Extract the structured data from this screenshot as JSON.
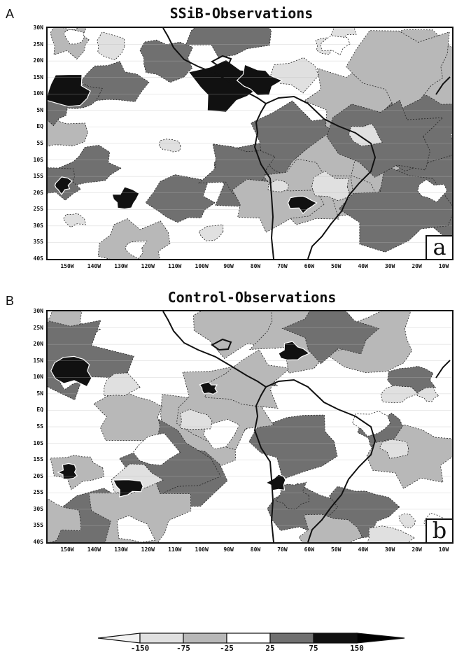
{
  "panels": [
    {
      "letter": "A",
      "title": "SSiB-Observations",
      "badge": "a",
      "seed": 3
    },
    {
      "letter": "B",
      "title": "Control-Observations",
      "badge": "b",
      "seed": 11
    }
  ],
  "axes": {
    "lat_labels": [
      "30N",
      "25N",
      "20N",
      "15N",
      "10N",
      "5N",
      "EQ",
      "5S",
      "10S",
      "15S",
      "20S",
      "25S",
      "30S",
      "35S",
      "40S"
    ],
    "lon_labels": [
      "150W",
      "140W",
      "130W",
      "120W",
      "110W",
      "100W",
      "90W",
      "80W",
      "70W",
      "60W",
      "50W",
      "40W",
      "30W",
      "20W",
      "10W"
    ]
  },
  "colorbar": {
    "labels": [
      "-150",
      "-75",
      "-25",
      "25",
      "75",
      "150"
    ],
    "colors": [
      "#e0e0e0",
      "#b8b8b8",
      "#ffffff",
      "#707070",
      "#111111"
    ],
    "end_low_color": "#f2f2f2",
    "end_high_color": "#000000"
  }
}
